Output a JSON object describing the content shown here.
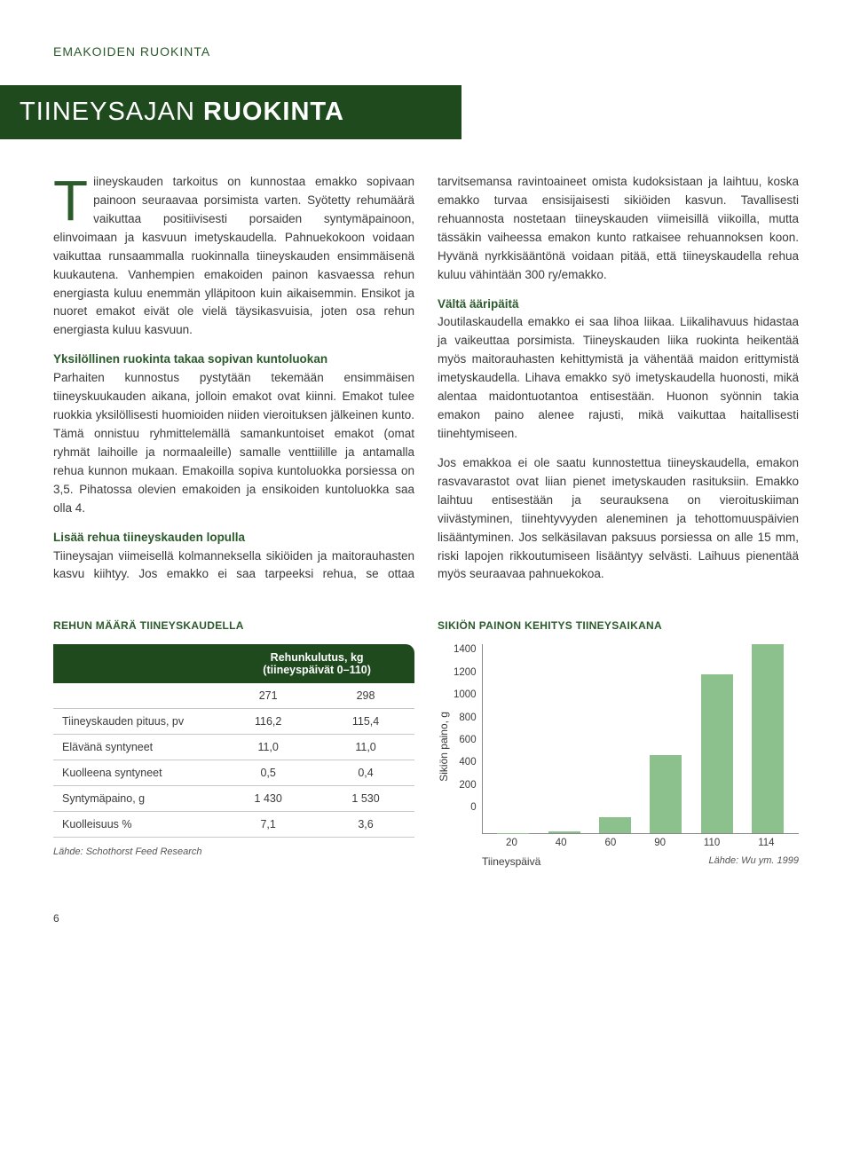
{
  "topic": "EMAKOIDEN RUOKINTA",
  "title_light": "TIINEYSAJAN ",
  "title_bold": "RUOKINTA",
  "intro_dropcap": "T",
  "intro": "iineyskauden tarkoitus on kunnostaa emakko sopivaan painoon seuraavaa porsimista varten. Syötetty rehumäärä vaikuttaa positiivisesti porsaiden syntymäpainoon, elinvoimaan ja kasvuun imetyskaudella. Pahnuekokoon voidaan vaikuttaa runsaammalla ruokinnalla tiineyskauden ensimmäisenä kuukautena. Vanhempien emakoiden painon kasvaessa rehun energiasta kuluu enemmän ylläpitoon kuin aikaisemmin. Ensikot ja nuoret emakot eivät ole vielä täysikasvuisia, joten osa rehun energiasta kuluu kasvuun.",
  "sub1_title": "Yksilöllinen ruokinta takaa sopivan kuntoluokan",
  "sub1_body": "Parhaiten kunnostus pystytään tekemään ensimmäisen tiineyskuukauden aikana, jolloin emakot ovat kiinni. Emakot tulee ruokkia yksilöllisesti huomioiden niiden vieroituksen jälkeinen kunto. Tämä onnistuu ryhmittelemällä samankuntoiset emakot (omat ryhmät laihoille ja normaaleille) samalle venttiilille ja antamalla rehua kunnon mukaan. Emakoilla sopiva kuntoluokka porsiessa on 3,5. Pihatossa olevien emakoiden ja ensikoiden kuntoluokka saa olla 4.",
  "sub2_title": "Lisää rehua tiineyskauden lopulla",
  "sub2_body": "Tiineysajan viimeisellä kolmanneksella sikiöiden ja maitorauhasten kasvu kiihtyy. Jos emakko ei saa tarpeeksi rehua, se ottaa tarvitsemansa ravintoaineet omista kudoksistaan ja laihtuu, koska emakko turvaa ensisijaisesti sikiöiden kasvun. Tavallisesti rehuannosta nostetaan tiineyskauden viimeisillä viikoilla, mutta tässäkin vaiheessa emakon kunto ratkaisee rehuannoksen koon. Hyvänä nyrkkisääntönä voidaan pitää, että tiineyskaudella rehua kuluu vähintään 300 ry/emakko.",
  "sub3_title": "Vältä ääripäitä",
  "sub3_body": "Joutilaskaudella emakko ei saa lihoa liikaa. Liikalihavuus hidastaa ja vaikeuttaa porsimista. Tiineyskauden liika ruokinta heikentää myös maitorauhasten kehittymistä ja vähentää maidon erittymistä imetyskaudella. Lihava emakko syö imetyskaudella huonosti, mikä alentaa maidontuotantoa entisestään. Huonon syönnin takia emakon paino alenee rajusti, mikä vaikuttaa haitallisesti tiinehtymiseen.",
  "sub3_body2": "Jos emakkoa ei ole saatu kunnostettua tiineyskaudella, emakon rasvavarastot ovat liian pienet imetyskauden rasituksiin. Emakko laihtuu entisestään ja seurauksena on vieroituskiiman viivästyminen, tiinehtyvyyden aleneminen ja tehottomuuspäivien lisääntyminen. Jos selkäsilavan paksuus porsiessa on alle 15 mm, riski lapojen rikkoutumiseen lisääntyy selvästi. Laihuus pienentää myös seuraavaa pahnuekokoa.",
  "table_section_title": "REHUN MÄÄRÄ TIINEYSKAUDELLA",
  "table_header": "Rehunkulutus, kg\n(tiineyspäivät 0–110)",
  "table_colA": "271",
  "table_colB": "298",
  "rows": [
    {
      "label": "Tiineyskauden pituus, pv",
      "a": "116,2",
      "b": "115,4"
    },
    {
      "label": "Elävänä syntyneet",
      "a": "11,0",
      "b": "11,0"
    },
    {
      "label": "Kuolleena syntyneet",
      "a": "0,5",
      "b": "0,4"
    },
    {
      "label": "Syntymäpaino, g",
      "a": "1 430",
      "b": "1 530"
    },
    {
      "label": "Kuolleisuus %",
      "a": "7,1",
      "b": "3,6"
    }
  ],
  "table_source": "Lähde: Schothorst Feed Research",
  "chart_section_title": "SIKIÖN PAINON KEHITYS TIINEYSAIKANA",
  "chart": {
    "type": "bar",
    "y_label": "Sikiön paino, g",
    "x_label": "Tiineyspäivä",
    "source": "Lähde: Wu ym. 1999",
    "ylim": [
      0,
      1400
    ],
    "ytick_step": 200,
    "yticks": [
      "1400",
      "1200",
      "1000",
      "800",
      "600",
      "400",
      "200",
      "0"
    ],
    "categories": [
      "20",
      "40",
      "60",
      "90",
      "110",
      "114"
    ],
    "values": [
      5,
      15,
      120,
      580,
      1180,
      1400
    ],
    "bar_color": "#8cc08c",
    "axis_color": "#888888",
    "text_color": "#3a3a3a"
  },
  "page_number": "6"
}
